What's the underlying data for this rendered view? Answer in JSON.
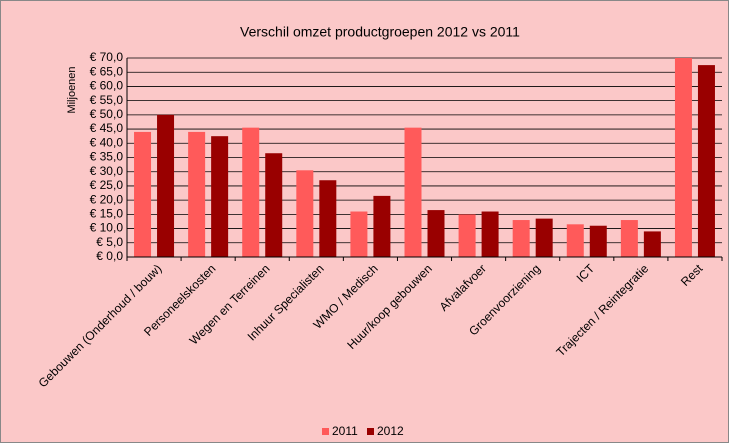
{
  "chart_data": {
    "type": "bar",
    "title": "Verschil omzet productgroepen 2012 vs 2011",
    "y_label": "Miljoenen",
    "categories": [
      "Gebouwen (Onderhoud / bouw)",
      "Personeelskosten",
      "Wegen en Terreinen",
      "Inhuur Specialisten",
      "WMO / Medisch",
      "Huur/koop gebouwen",
      "Afvalafvoer",
      "Groenvoorziening",
      "ICT",
      "Trajecten / Reintegratie",
      "Rest"
    ],
    "series": [
      {
        "name": "2011",
        "color": "#ff5a5a",
        "values": [
          44,
          44,
          45.5,
          30.5,
          16,
          45.5,
          15,
          13,
          11.5,
          13,
          70
        ]
      },
      {
        "name": "2012",
        "color": "#990000",
        "values": [
          50,
          42.5,
          36.5,
          27,
          21.5,
          16.5,
          16,
          13.5,
          11,
          9,
          67.5
        ]
      }
    ],
    "ylim": [
      0,
      70
    ],
    "yticks": [
      {
        "value": 0,
        "label": "€ 0,0"
      },
      {
        "value": 5,
        "label": "€ 5,0"
      },
      {
        "value": 10,
        "label": "€ 10,0"
      },
      {
        "value": 15,
        "label": "€ 15,0"
      },
      {
        "value": 20,
        "label": "€ 20,0"
      },
      {
        "value": 25,
        "label": "€ 25,0"
      },
      {
        "value": 30,
        "label": "€ 30,0"
      },
      {
        "value": 35,
        "label": "€ 35,0"
      },
      {
        "value": 40,
        "label": "€ 40,0"
      },
      {
        "value": 45,
        "label": "€ 45,0"
      },
      {
        "value": 50,
        "label": "€ 50,0"
      },
      {
        "value": 55,
        "label": "€ 55,0"
      },
      {
        "value": 60,
        "label": "€ 60,0"
      },
      {
        "value": 65,
        "label": "€ 65,0"
      },
      {
        "value": 70,
        "label": "€ 70,0"
      }
    ],
    "grid": true,
    "legend": "bottom"
  }
}
